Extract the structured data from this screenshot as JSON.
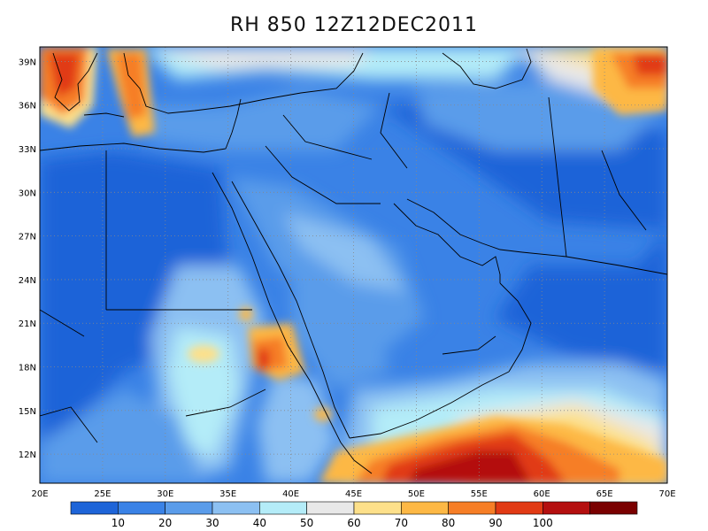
{
  "title": "RH 850 12Z12DEC2011",
  "map": {
    "lon_range": [
      20,
      70
    ],
    "lat_range": [
      10,
      40
    ],
    "lon_ticks": [
      "20E",
      "25E",
      "30E",
      "35E",
      "40E",
      "45E",
      "50E",
      "55E",
      "60E",
      "65E",
      "70E"
    ],
    "lat_ticks": [
      "12N",
      "15N",
      "18N",
      "21N",
      "24N",
      "27N",
      "30N",
      "33N",
      "36N",
      "39N"
    ],
    "grid_style": "dotted"
  },
  "colorbar": {
    "labels": [
      "10",
      "20",
      "30",
      "40",
      "50",
      "60",
      "70",
      "80",
      "90",
      "100"
    ],
    "colors": [
      "#1e64d8",
      "#3a82e6",
      "#5a9cea",
      "#8cc0f2",
      "#b4ecf8",
      "#e8e8e8",
      "#fde08a",
      "#fdb845",
      "#f67e26",
      "#e13a14",
      "#b40f0f",
      "#7a0000"
    ]
  }
}
